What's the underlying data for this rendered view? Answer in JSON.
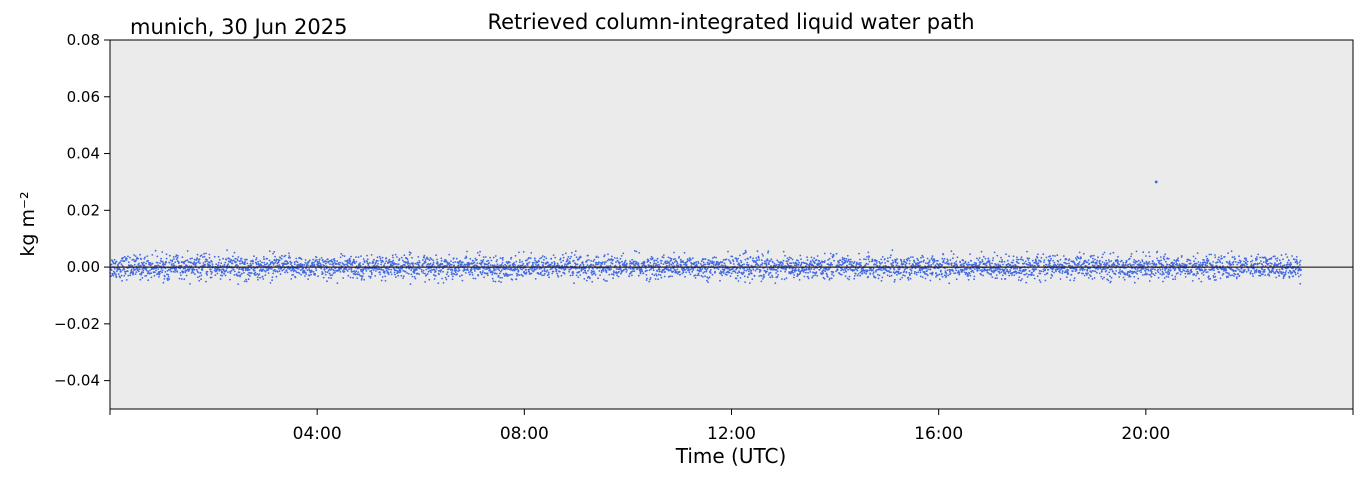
{
  "chart_data": {
    "type": "scatter",
    "title": "Retrieved column-integrated liquid water path",
    "location_date": "munich, 30 Jun 2025",
    "xlabel": "Time (UTC)",
    "ylabel": "kg m⁻²",
    "xlim": [
      "00:00",
      "24:00"
    ],
    "ylim": [
      -0.05,
      0.08
    ],
    "x_tick_labels": [
      "04:00",
      "08:00",
      "12:00",
      "16:00",
      "20:00"
    ],
    "y_tick_labels": [
      "−0.04",
      "−0.02",
      "0.00",
      "0.02",
      "0.04",
      "0.06",
      "0.08"
    ],
    "y_ticks": [
      -0.04,
      -0.02,
      0.0,
      0.02,
      0.04,
      0.06,
      0.08
    ],
    "x_ticks_hours": [
      0,
      4,
      8,
      12,
      16,
      20,
      24
    ],
    "grid": false,
    "background_color": "#ebebeb",
    "zero_line": {
      "y": 0.0,
      "color": "#000000"
    },
    "series": [
      {
        "kind": "scatter",
        "color": "#4169e1",
        "time_range_hours": [
          0.0,
          23.0
        ],
        "center": 0.0,
        "typical_range": [
          -0.004,
          0.004
        ],
        "extremes": [
          -0.006,
          0.006
        ],
        "gaps_hours": [
          2.0,
          6.0,
          10.0,
          14.0,
          18.0,
          22.0
        ],
        "outliers": [
          {
            "x_hours": 20.2,
            "y": 0.03
          }
        ]
      },
      {
        "kind": "line",
        "color": "#ff8c3a",
        "time_range_hours": [
          0.0,
          23.0
        ],
        "y": 0.0
      }
    ]
  }
}
